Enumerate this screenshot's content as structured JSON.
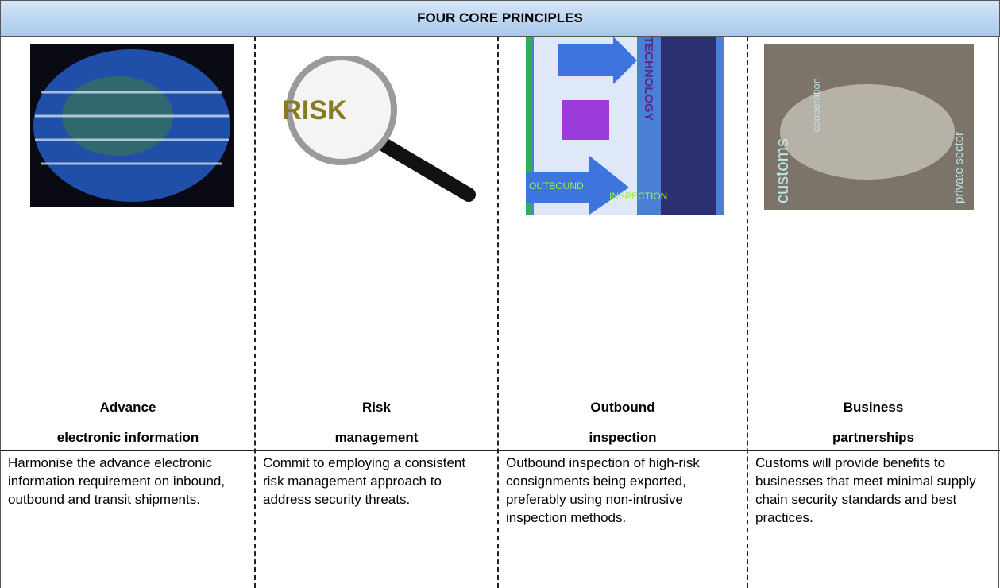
{
  "header": {
    "title": "FOUR CORE PRINCIPLES"
  },
  "columns": [
    {
      "heading": [
        "Advance",
        "electronic information"
      ],
      "description": "Harmonise the advance electronic information requirement on inbound, outbound and transit shipments."
    },
    {
      "heading": [
        "Risk",
        "management"
      ],
      "image_text": [
        "RISK"
      ],
      "description": "Commit to employing a consistent risk management approach to address security threats."
    },
    {
      "heading": [
        "Outbound",
        "inspection"
      ],
      "image_text": [
        "TECHNOLOGY",
        "OUTBOUND",
        "INSPECTION"
      ],
      "description": "Outbound inspection of high-risk consignments being exported, preferably using non-intrusive inspection methods."
    },
    {
      "heading": [
        "Business",
        "partnerships"
      ],
      "image_text": [
        "customs",
        "cooperation",
        "private sector"
      ],
      "description": "Customs will provide benefits to businesses that meet minimal supply chain security standards and best practices."
    }
  ]
}
